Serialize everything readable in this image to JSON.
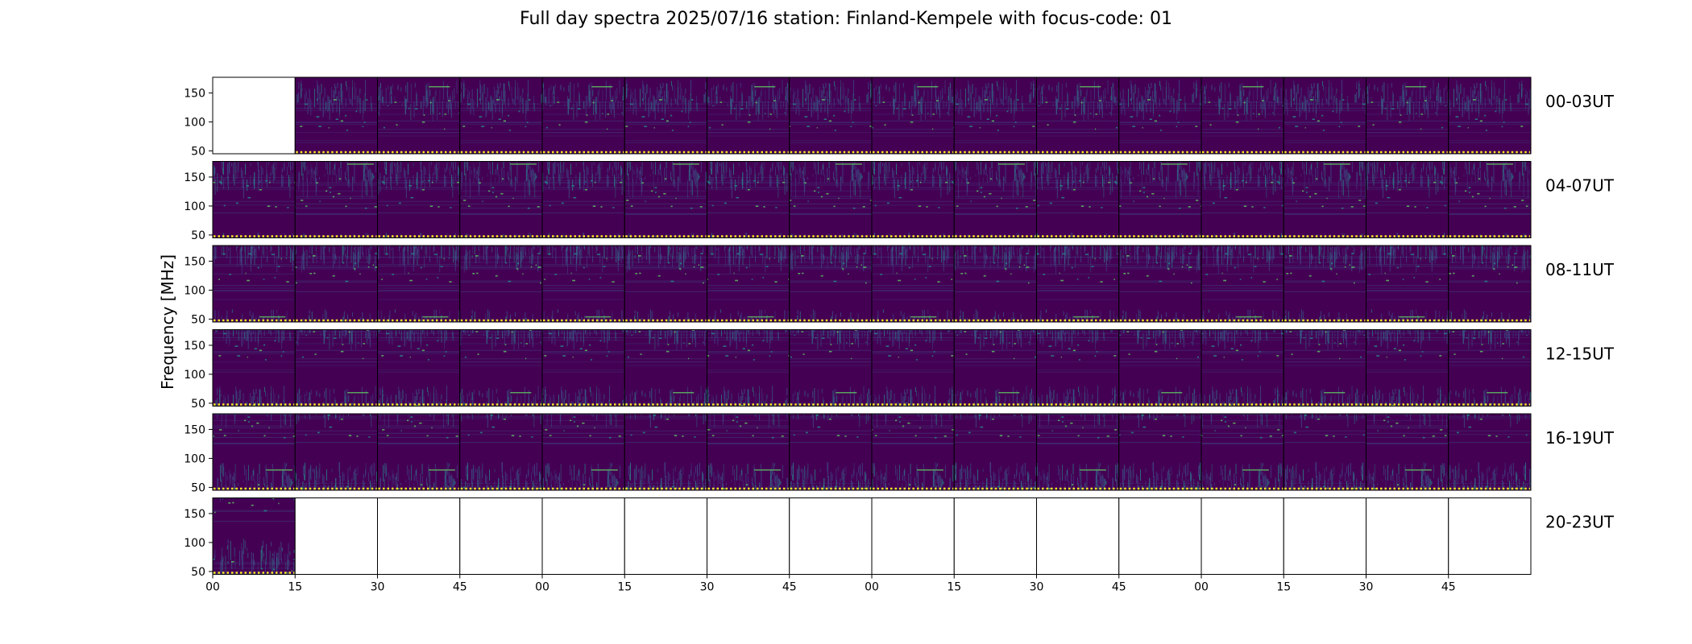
{
  "chart_data": {
    "type": "heatmap",
    "title": "Full day spectra 2025/07/16 station: Finland-Kempele with focus-code: 01",
    "ylabel": "Frequency [MHz]",
    "xlabel": "",
    "ylim": [
      45,
      177
    ],
    "ytick_labels": [
      "150",
      "100",
      "50"
    ],
    "ytick_values": [
      150,
      100,
      50
    ],
    "xtick_labels": [
      "00",
      "15",
      "30",
      "45",
      "00",
      "15",
      "30",
      "45",
      "00",
      "15",
      "30",
      "45",
      "00",
      "15",
      "30",
      "45"
    ],
    "rows": [
      {
        "label": "00-03UT",
        "data_panels": [
          false,
          true,
          true,
          true,
          true,
          true,
          true,
          true,
          true,
          true,
          true,
          true,
          true,
          true,
          true,
          true
        ]
      },
      {
        "label": "04-07UT",
        "data_panels": [
          true,
          true,
          true,
          true,
          true,
          true,
          true,
          true,
          true,
          true,
          true,
          true,
          true,
          true,
          true,
          true
        ]
      },
      {
        "label": "08-11UT",
        "data_panels": [
          true,
          true,
          true,
          true,
          true,
          true,
          true,
          true,
          true,
          true,
          true,
          true,
          true,
          true,
          true,
          true
        ]
      },
      {
        "label": "12-15UT",
        "data_panels": [
          true,
          true,
          true,
          true,
          true,
          true,
          true,
          true,
          true,
          true,
          true,
          true,
          true,
          true,
          true,
          true
        ]
      },
      {
        "label": "16-19UT",
        "data_panels": [
          true,
          true,
          true,
          true,
          true,
          true,
          true,
          true,
          true,
          true,
          true,
          true,
          true,
          true,
          true,
          true
        ]
      },
      {
        "label": "20-23UT",
        "data_panels": [
          true,
          false,
          false,
          false,
          false,
          false,
          false,
          false,
          false,
          false,
          false,
          false,
          false,
          false,
          false,
          false
        ]
      }
    ],
    "colormap": [
      "#440154",
      "#3b528b",
      "#21918c",
      "#5ec962",
      "#fde725"
    ],
    "grid": false
  }
}
